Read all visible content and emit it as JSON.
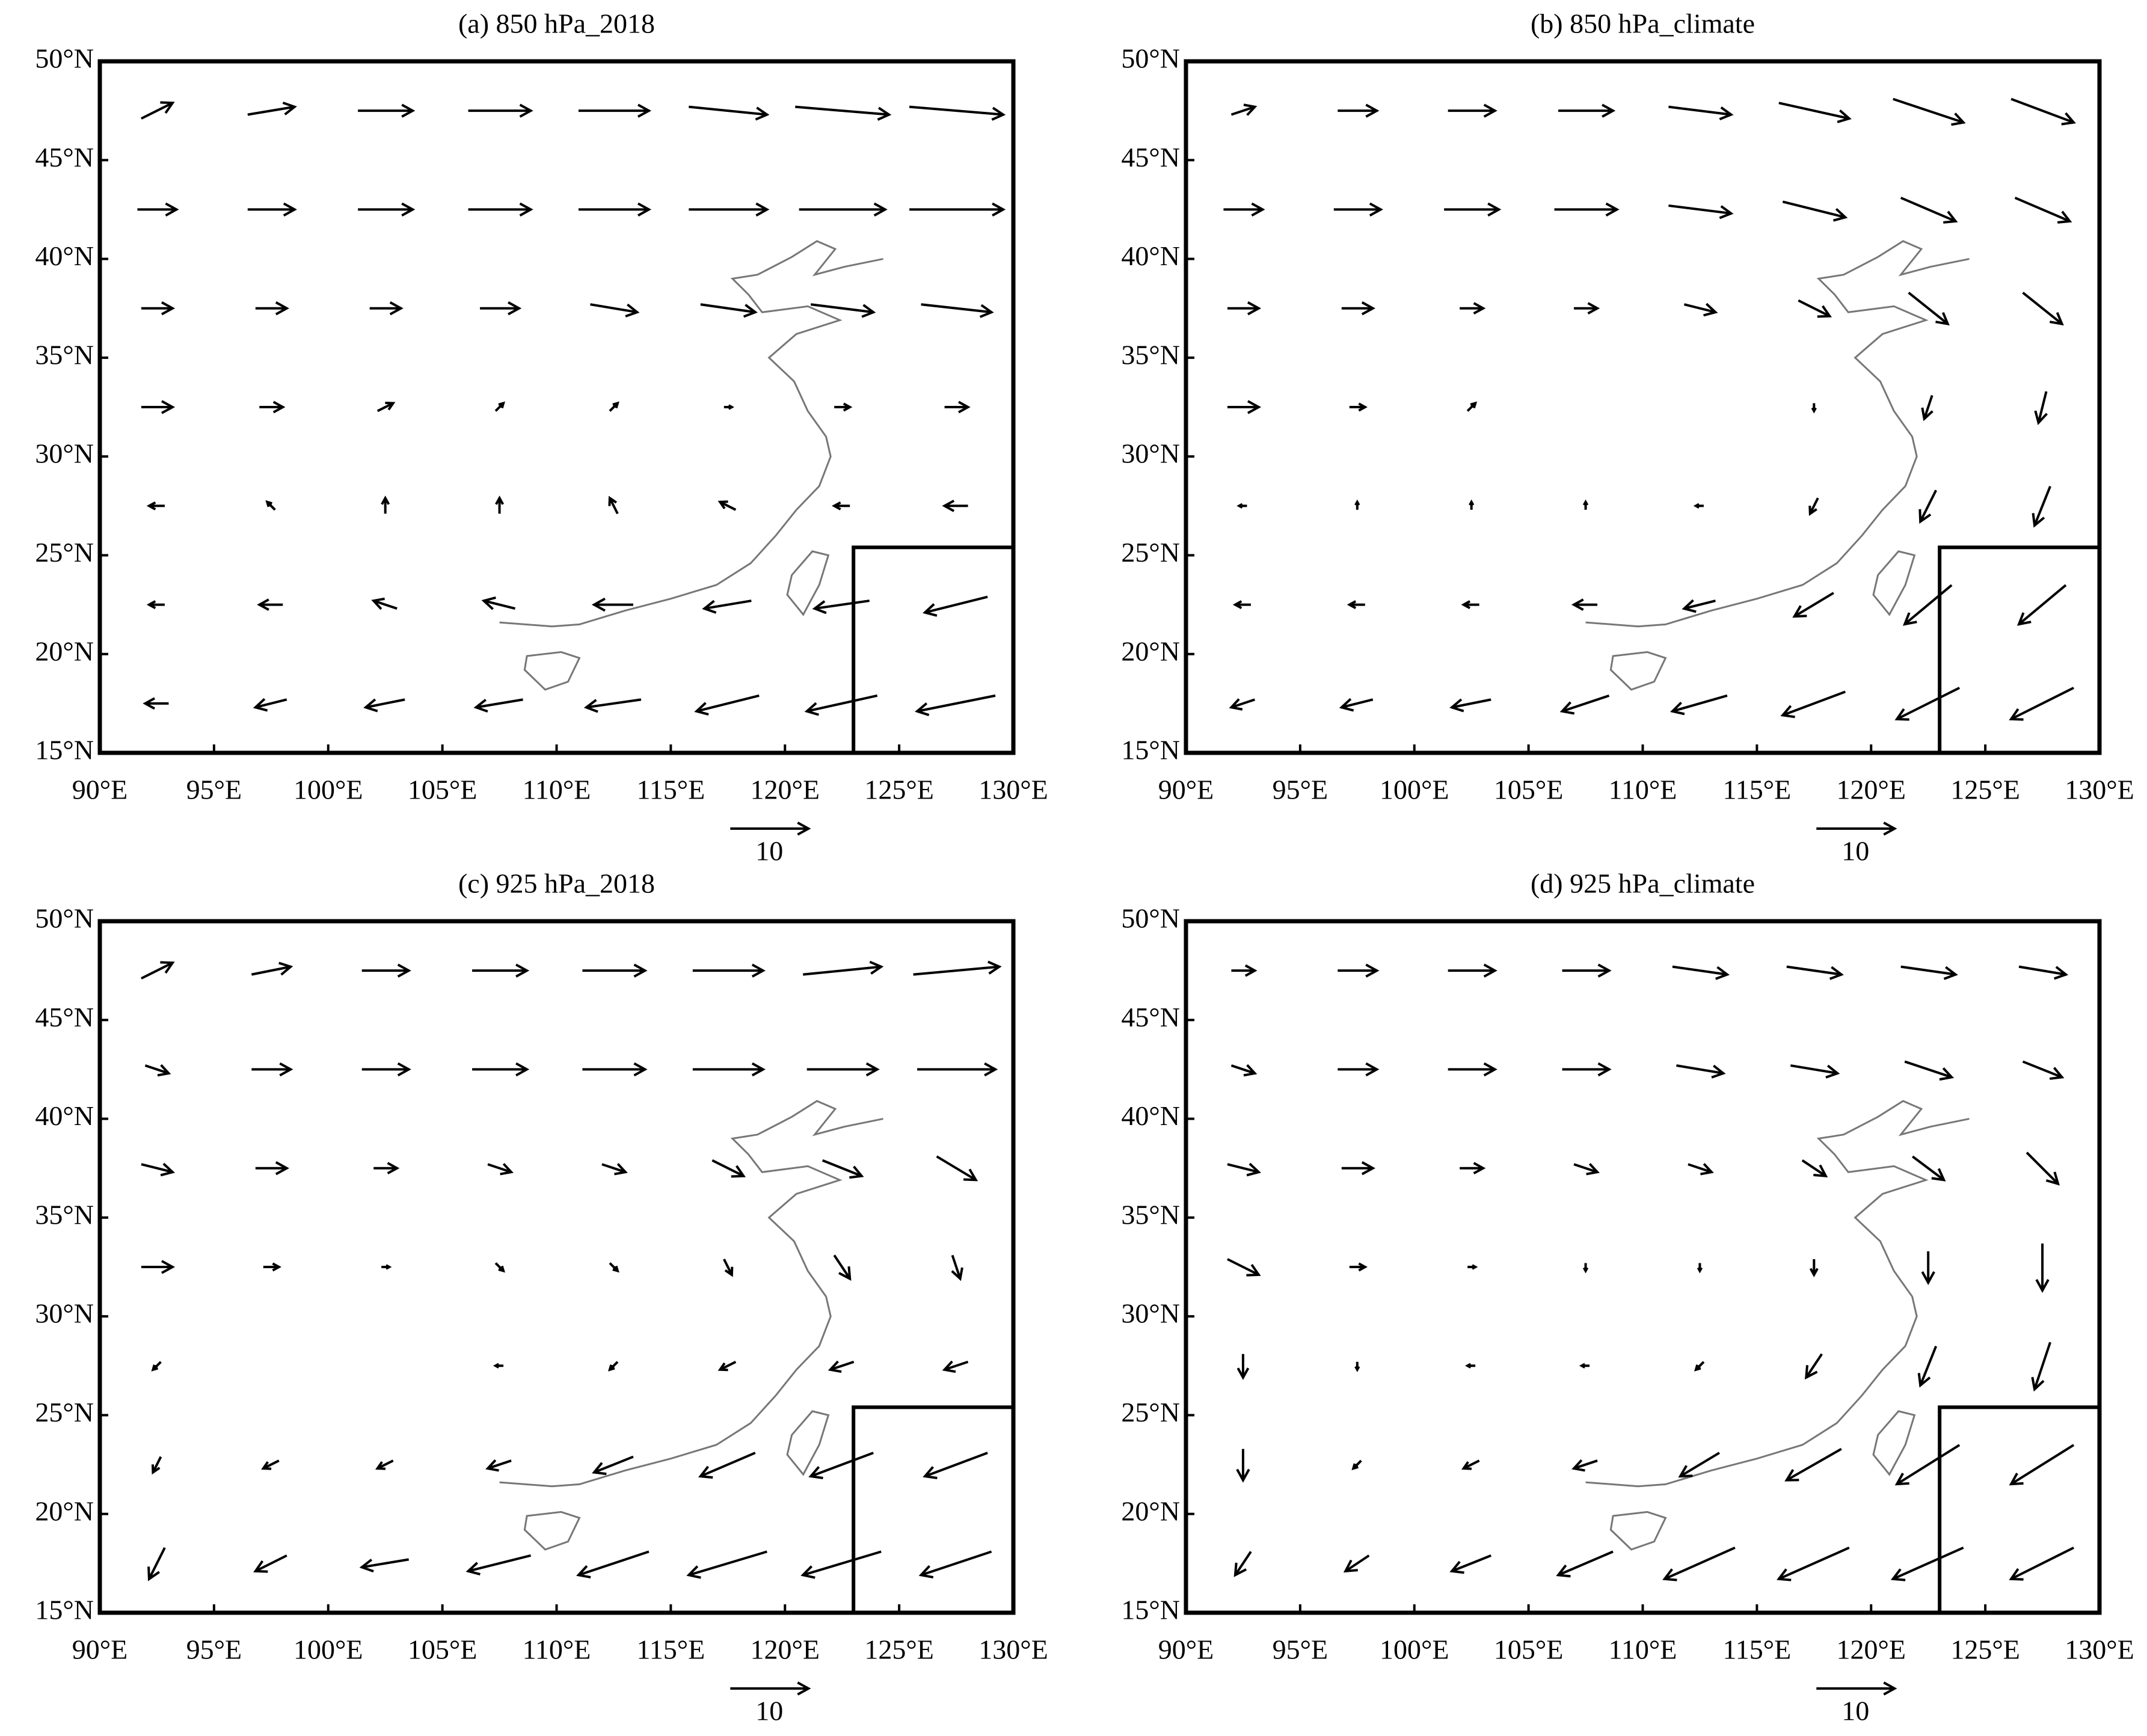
{
  "chart_data": [
    {
      "type": "quiver",
      "title": "(a) 850 hPa_2018",
      "color": "#000000",
      "lon": [
        92.5,
        97.5,
        102.5,
        107.5,
        112.5,
        117.5,
        122.5,
        127.5
      ],
      "lat": [
        47.5,
        42.5,
        37.5,
        32.5,
        27.5,
        22.5,
        17.5
      ],
      "u": [
        [
          4,
          6,
          7,
          8,
          9,
          10,
          12,
          12
        ],
        [
          5,
          6,
          7,
          8,
          9,
          10,
          11,
          12
        ],
        [
          4,
          4,
          4,
          5,
          6,
          7,
          8,
          9
        ],
        [
          4,
          3,
          2,
          1,
          1,
          1,
          2,
          3
        ],
        [
          -2,
          -1,
          0,
          0,
          -1,
          -2,
          -2,
          -3
        ],
        [
          -2,
          -3,
          -3,
          -4,
          -5,
          -6,
          -7,
          -8
        ],
        [
          -3,
          -4,
          -5,
          -6,
          -7,
          -8,
          -9,
          -10
        ]
      ],
      "v": [
        [
          2,
          1,
          0,
          0,
          0,
          -1,
          -1,
          -1
        ],
        [
          0,
          0,
          0,
          0,
          0,
          0,
          0,
          0
        ],
        [
          0,
          0,
          0,
          0,
          -1,
          -1,
          -1,
          -1
        ],
        [
          0,
          0,
          1,
          1,
          1,
          0,
          0,
          0
        ],
        [
          0,
          1,
          2,
          2,
          2,
          1,
          0,
          0
        ],
        [
          0,
          0,
          1,
          1,
          0,
          -1,
          -1,
          -2
        ],
        [
          0,
          -1,
          -1,
          -1,
          -1,
          -2,
          -2,
          -2
        ]
      ],
      "xlim": [
        90,
        130
      ],
      "ylim": [
        15,
        50
      ],
      "xticks": [
        {
          "value": 90,
          "label": "90°E"
        },
        {
          "value": 95,
          "label": "95°E"
        },
        {
          "value": 100,
          "label": "100°E"
        },
        {
          "value": 105,
          "label": "105°E"
        },
        {
          "value": 110,
          "label": "110°E"
        },
        {
          "value": 115,
          "label": "115°E"
        },
        {
          "value": 120,
          "label": "120°E"
        },
        {
          "value": 125,
          "label": "125°E"
        },
        {
          "value": 130,
          "label": "130°E"
        }
      ],
      "yticks": [
        {
          "value": 15,
          "label": "15°N"
        },
        {
          "value": 20,
          "label": "20°N"
        },
        {
          "value": 25,
          "label": "25°N"
        },
        {
          "value": 30,
          "label": "30°N"
        },
        {
          "value": 35,
          "label": "35°N"
        },
        {
          "value": 40,
          "label": "40°N"
        },
        {
          "value": 45,
          "label": "45°N"
        },
        {
          "value": 50,
          "label": "50°N"
        }
      ],
      "reference_vector": 10
    },
    {
      "type": "quiver",
      "title": "(b) 850 hPa_climate",
      "color": "#000000",
      "lon": [
        92.5,
        97.5,
        102.5,
        107.5,
        112.5,
        117.5,
        122.5,
        127.5
      ],
      "lat": [
        47.5,
        42.5,
        37.5,
        32.5,
        27.5,
        22.5,
        17.5
      ],
      "u": [
        [
          3,
          5,
          6,
          7,
          8,
          9,
          9,
          8
        ],
        [
          5,
          6,
          7,
          8,
          8,
          8,
          7,
          7
        ],
        [
          4,
          4,
          3,
          3,
          4,
          4,
          5,
          5
        ],
        [
          4,
          2,
          1,
          0,
          0,
          0,
          -1,
          -1
        ],
        [
          -1,
          0,
          0,
          0,
          -1,
          -1,
          -2,
          -2
        ],
        [
          -2,
          -2,
          -2,
          -3,
          -4,
          -5,
          -6,
          -6
        ],
        [
          -3,
          -4,
          -5,
          -6,
          -7,
          -8,
          -8,
          -8
        ]
      ],
      "v": [
        [
          1,
          0,
          0,
          0,
          -1,
          -2,
          -3,
          -3
        ],
        [
          0,
          0,
          0,
          0,
          -1,
          -2,
          -3,
          -3
        ],
        [
          0,
          0,
          0,
          0,
          -1,
          -2,
          -4,
          -4
        ],
        [
          0,
          0,
          1,
          0,
          0,
          -1,
          -3,
          -4
        ],
        [
          0,
          1,
          1,
          1,
          0,
          -2,
          -4,
          -5
        ],
        [
          0,
          0,
          0,
          0,
          -1,
          -3,
          -5,
          -5
        ],
        [
          -1,
          -1,
          -1,
          -2,
          -2,
          -3,
          -4,
          -4
        ]
      ],
      "xlim": [
        90,
        130
      ],
      "ylim": [
        15,
        50
      ],
      "xticks": [
        {
          "value": 90,
          "label": "90°E"
        },
        {
          "value": 95,
          "label": "95°E"
        },
        {
          "value": 100,
          "label": "100°E"
        },
        {
          "value": 105,
          "label": "105°E"
        },
        {
          "value": 110,
          "label": "110°E"
        },
        {
          "value": 115,
          "label": "115°E"
        },
        {
          "value": 120,
          "label": "120°E"
        },
        {
          "value": 125,
          "label": "125°E"
        },
        {
          "value": 130,
          "label": "130°E"
        }
      ],
      "yticks": [
        {
          "value": 15,
          "label": "15°N"
        },
        {
          "value": 20,
          "label": "20°N"
        },
        {
          "value": 25,
          "label": "25°N"
        },
        {
          "value": 30,
          "label": "30°N"
        },
        {
          "value": 35,
          "label": "35°N"
        },
        {
          "value": 40,
          "label": "40°N"
        },
        {
          "value": 45,
          "label": "45°N"
        },
        {
          "value": 50,
          "label": "50°N"
        }
      ],
      "reference_vector": 10
    },
    {
      "type": "quiver",
      "title": "(c) 925 hPa_2018",
      "color": "#000000",
      "lon": [
        92.5,
        97.5,
        102.5,
        107.5,
        112.5,
        117.5,
        122.5,
        127.5
      ],
      "lat": [
        47.5,
        42.5,
        37.5,
        32.5,
        27.5,
        22.5,
        17.5
      ],
      "u": [
        [
          4,
          5,
          6,
          7,
          8,
          9,
          10,
          11
        ],
        [
          3,
          5,
          6,
          7,
          8,
          9,
          9,
          10
        ],
        [
          4,
          4,
          3,
          3,
          3,
          4,
          5,
          5
        ],
        [
          4,
          2,
          1,
          1,
          1,
          1,
          2,
          1
        ],
        [
          -1,
          0,
          0,
          -1,
          -1,
          -2,
          -3,
          -3
        ],
        [
          -1,
          -2,
          -2,
          -3,
          -5,
          -7,
          -8,
          -8
        ],
        [
          -2,
          -4,
          -6,
          -8,
          -9,
          -10,
          -10,
          -9
        ]
      ],
      "v": [
        [
          2,
          1,
          0,
          0,
          0,
          0,
          1,
          1
        ],
        [
          -1,
          0,
          0,
          0,
          0,
          0,
          0,
          0
        ],
        [
          -1,
          0,
          0,
          -1,
          -1,
          -2,
          -2,
          -3
        ],
        [
          0,
          0,
          0,
          -1,
          -1,
          -2,
          -3,
          -3
        ],
        [
          -1,
          0,
          0,
          0,
          -1,
          -1,
          -1,
          -1
        ],
        [
          -2,
          -1,
          -1,
          -1,
          -2,
          -3,
          -3,
          -3
        ],
        [
          -4,
          -2,
          -1,
          -2,
          -3,
          -3,
          -3,
          -3
        ]
      ],
      "xlim": [
        90,
        130
      ],
      "ylim": [
        15,
        50
      ],
      "xticks": [
        {
          "value": 90,
          "label": "90°E"
        },
        {
          "value": 95,
          "label": "95°E"
        },
        {
          "value": 100,
          "label": "100°E"
        },
        {
          "value": 105,
          "label": "105°E"
        },
        {
          "value": 110,
          "label": "110°E"
        },
        {
          "value": 115,
          "label": "115°E"
        },
        {
          "value": 120,
          "label": "120°E"
        },
        {
          "value": 125,
          "label": "125°E"
        },
        {
          "value": 130,
          "label": "130°E"
        }
      ],
      "yticks": [
        {
          "value": 15,
          "label": "15°N"
        },
        {
          "value": 20,
          "label": "20°N"
        },
        {
          "value": 25,
          "label": "25°N"
        },
        {
          "value": 30,
          "label": "30°N"
        },
        {
          "value": 35,
          "label": "35°N"
        },
        {
          "value": 40,
          "label": "40°N"
        },
        {
          "value": 45,
          "label": "45°N"
        },
        {
          "value": 50,
          "label": "50°N"
        }
      ],
      "reference_vector": 10
    },
    {
      "type": "quiver",
      "title": "(d) 925 hPa_climate",
      "color": "#000000",
      "lon": [
        92.5,
        97.5,
        102.5,
        107.5,
        112.5,
        117.5,
        122.5,
        127.5
      ],
      "lat": [
        47.5,
        42.5,
        37.5,
        32.5,
        27.5,
        22.5,
        17.5
      ],
      "u": [
        [
          3,
          5,
          6,
          6,
          7,
          7,
          7,
          6
        ],
        [
          3,
          5,
          6,
          6,
          6,
          6,
          6,
          5
        ],
        [
          4,
          4,
          3,
          3,
          3,
          3,
          4,
          4
        ],
        [
          4,
          2,
          1,
          0,
          0,
          0,
          0,
          0
        ],
        [
          0,
          0,
          -1,
          -1,
          -1,
          -2,
          -2,
          -2
        ],
        [
          0,
          -1,
          -2,
          -3,
          -5,
          -7,
          -8,
          -8
        ],
        [
          -2,
          -3,
          -5,
          -7,
          -9,
          -9,
          -9,
          -8
        ]
      ],
      "v": [
        [
          0,
          0,
          0,
          0,
          -1,
          -1,
          -1,
          -1
        ],
        [
          -1,
          0,
          0,
          0,
          -1,
          -1,
          -2,
          -2
        ],
        [
          -1,
          0,
          0,
          -1,
          -1,
          -2,
          -3,
          -4
        ],
        [
          -2,
          0,
          0,
          -1,
          -1,
          -2,
          -4,
          -6
        ],
        [
          -3,
          -1,
          0,
          0,
          -1,
          -3,
          -5,
          -6
        ],
        [
          -4,
          -1,
          -1,
          -1,
          -3,
          -4,
          -5,
          -5
        ],
        [
          -3,
          -2,
          -2,
          -3,
          -4,
          -4,
          -4,
          -4
        ]
      ],
      "xlim": [
        90,
        130
      ],
      "ylim": [
        15,
        50
      ],
      "xticks": [
        {
          "value": 90,
          "label": "90°E"
        },
        {
          "value": 95,
          "label": "95°E"
        },
        {
          "value": 100,
          "label": "100°E"
        },
        {
          "value": 105,
          "label": "105°E"
        },
        {
          "value": 110,
          "label": "110°E"
        },
        {
          "value": 115,
          "label": "115°E"
        },
        {
          "value": 120,
          "label": "120°E"
        },
        {
          "value": 125,
          "label": "125°E"
        },
        {
          "value": 130,
          "label": "130°E"
        }
      ],
      "yticks": [
        {
          "value": 15,
          "label": "15°N"
        },
        {
          "value": 20,
          "label": "20°N"
        },
        {
          "value": 25,
          "label": "25°N"
        },
        {
          "value": 30,
          "label": "30°N"
        },
        {
          "value": 35,
          "label": "35°N"
        },
        {
          "value": 40,
          "label": "40°N"
        },
        {
          "value": 45,
          "label": "45°N"
        },
        {
          "value": 50,
          "label": "50°N"
        }
      ],
      "reference_vector": 10
    }
  ]
}
